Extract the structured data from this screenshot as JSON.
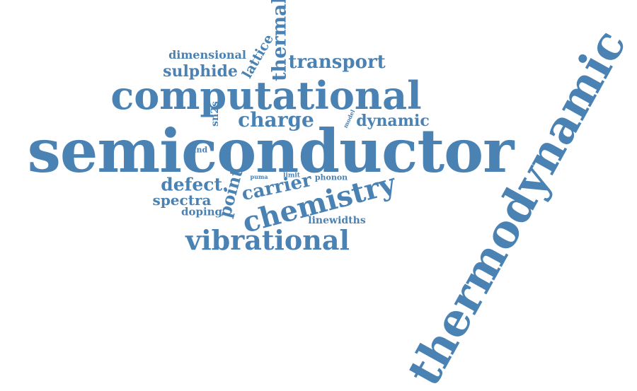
{
  "wordcloud": {
    "color": "#4a82b4",
    "words": {
      "thermodynamic": "thermodynamic",
      "semiconductor": "semiconductor",
      "computational": "computational",
      "vibrational": "vibrational",
      "chemistry": "chemistry",
      "carrier": "carrier",
      "charge": "charge",
      "transport": "transport",
      "thermal": "thermal",
      "sulphide": "sulphide",
      "dimensional": "dimensional",
      "lattice": "lattice",
      "dynamic": "dynamic",
      "defect": "defect.",
      "spectra": "spectra",
      "doping": "doping",
      "point": "point",
      "sn2s": "sn2s",
      "band": "band",
      "model": "model",
      "puma": "puma",
      "limit": "limit",
      "phonon": "phonon",
      "linewidths": "linewidths"
    }
  }
}
